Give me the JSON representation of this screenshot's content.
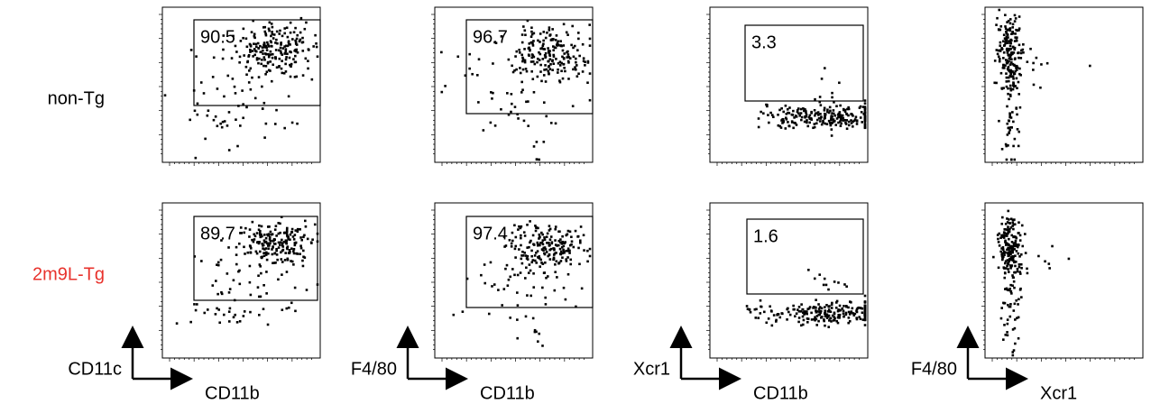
{
  "rows": [
    {
      "label": "non-Tg",
      "gates": [
        90.5,
        96.7,
        3.3
      ]
    },
    {
      "label": "2m9L-Tg",
      "gates": [
        89.7,
        97.4,
        1.6
      ]
    }
  ],
  "axes": [
    {
      "y": "CD11c",
      "x": "CD11b"
    },
    {
      "y": "F4/80",
      "x": "CD11b"
    },
    {
      "y": "Xcr1",
      "x": "CD11b"
    },
    {
      "y": "F4/80",
      "x": "Xcr1"
    }
  ]
}
